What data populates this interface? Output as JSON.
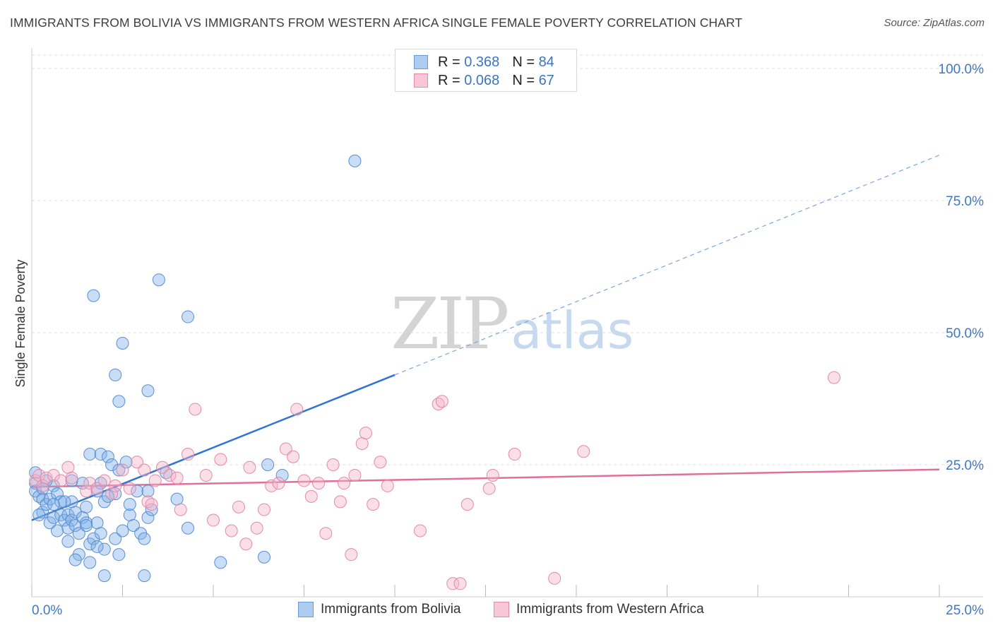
{
  "title": "IMMIGRANTS FROM BOLIVIA VS IMMIGRANTS FROM WESTERN AFRICA SINGLE FEMALE POVERTY CORRELATION CHART",
  "source": "Source: ZipAtlas.com",
  "watermark": {
    "zip": "ZIP",
    "atlas": "atlas"
  },
  "legend_top": {
    "rows": [
      {
        "r_label": "R =",
        "r_value": "0.368",
        "n_label": "N =",
        "n_value": "84",
        "color": "#aecbf0",
        "border": "#6b9bd6"
      },
      {
        "r_label": "R =",
        "r_value": "0.068",
        "n_label": "N =",
        "n_value": "67",
        "color": "#f8c6d6",
        "border": "#e48aa8"
      }
    ]
  },
  "chart_data": {
    "type": "scatter",
    "title": "IMMIGRANTS FROM BOLIVIA VS IMMIGRANTS FROM WESTERN AFRICA SINGLE FEMALE POVERTY CORRELATION CHART",
    "xlabel": "",
    "ylabel": "Single Female Poverty",
    "xlim": [
      0,
      25
    ],
    "ylim": [
      0,
      100
    ],
    "x_tick_labels": [
      "0.0%",
      "25.0%"
    ],
    "y_tick_labels": [
      "25.0%",
      "50.0%",
      "75.0%",
      "100.0%"
    ],
    "y_ticks": [
      25,
      50,
      75,
      100
    ],
    "grid": true,
    "series": [
      {
        "name": "Immigrants from Bolivia",
        "color": "#7fb0ea",
        "stroke": "#5a8fd0",
        "trend": {
          "x0": 0,
          "y0": 14.5,
          "x1": 10,
          "y1": 42,
          "dash_to_x": 25,
          "dash_to_y": 83.6,
          "color": "#2f74cf"
        },
        "points": [
          [
            0.1,
            23.5
          ],
          [
            0.1,
            21.5
          ],
          [
            0.1,
            20
          ],
          [
            0.2,
            19
          ],
          [
            0.3,
            18.5
          ],
          [
            0.3,
            16
          ],
          [
            0.4,
            17.5
          ],
          [
            0.5,
            18.5
          ],
          [
            0.5,
            14
          ],
          [
            0.6,
            15
          ],
          [
            0.6,
            21
          ],
          [
            0.7,
            19.5
          ],
          [
            0.8,
            18
          ],
          [
            0.8,
            15.5
          ],
          [
            0.9,
            14.5
          ],
          [
            1.0,
            15.5
          ],
          [
            1.0,
            13
          ],
          [
            1.1,
            18
          ],
          [
            1.1,
            14.5
          ],
          [
            1.2,
            16
          ],
          [
            1.2,
            13.5
          ],
          [
            1.3,
            12
          ],
          [
            1.3,
            8
          ],
          [
            1.4,
            21.5
          ],
          [
            1.4,
            15
          ],
          [
            1.5,
            14
          ],
          [
            1.5,
            17
          ],
          [
            1.6,
            27
          ],
          [
            1.6,
            6.5
          ],
          [
            1.6,
            10
          ],
          [
            1.7,
            11
          ],
          [
            1.8,
            20
          ],
          [
            1.8,
            14
          ],
          [
            1.9,
            27
          ],
          [
            1.9,
            12
          ],
          [
            1.9,
            21.5
          ],
          [
            2.0,
            9
          ],
          [
            2.0,
            18
          ],
          [
            2.1,
            26.5
          ],
          [
            2.2,
            25
          ],
          [
            2.3,
            19.5
          ],
          [
            2.3,
            11
          ],
          [
            2.4,
            24
          ],
          [
            2.4,
            8
          ],
          [
            2.5,
            12.5
          ],
          [
            2.6,
            25.5
          ],
          [
            2.7,
            15.5
          ],
          [
            2.7,
            17.5
          ],
          [
            2.8,
            13.5
          ],
          [
            2.9,
            20
          ],
          [
            3.0,
            12
          ],
          [
            3.1,
            11
          ],
          [
            3.1,
            4
          ],
          [
            3.2,
            20
          ],
          [
            3.2,
            15
          ],
          [
            3.3,
            16.5
          ],
          [
            1.7,
            57
          ],
          [
            2.3,
            42
          ],
          [
            2.4,
            37
          ],
          [
            2.5,
            48
          ],
          [
            3.5,
            60
          ],
          [
            4.3,
            53
          ],
          [
            3.2,
            39
          ],
          [
            3.7,
            23.5
          ],
          [
            4.0,
            18.5
          ],
          [
            4.3,
            13
          ],
          [
            5.2,
            6.5
          ],
          [
            6.4,
            7.5
          ],
          [
            6.5,
            25
          ],
          [
            6.9,
            23
          ],
          [
            8.9,
            82.5
          ],
          [
            0.2,
            15.5
          ],
          [
            0.4,
            22
          ],
          [
            0.6,
            17.5
          ],
          [
            0.9,
            18
          ],
          [
            1.1,
            22
          ],
          [
            1.5,
            13.5
          ],
          [
            2.0,
            4
          ],
          [
            2.1,
            19
          ],
          [
            1.2,
            7
          ],
          [
            0.3,
            20.5
          ],
          [
            0.7,
            12.5
          ],
          [
            1.0,
            10.5
          ],
          [
            1.8,
            9.5
          ]
        ]
      },
      {
        "name": "Immigrants from Western Africa",
        "color": "#f6b3c8",
        "stroke": "#e28aa8",
        "trend": {
          "x0": 0,
          "y0": 20.8,
          "x1": 25,
          "y1": 24.1,
          "color": "#e0709a"
        },
        "points": [
          [
            0.1,
            22
          ],
          [
            0.2,
            23
          ],
          [
            0.3,
            21
          ],
          [
            0.4,
            22.5
          ],
          [
            0.6,
            23
          ],
          [
            0.8,
            22
          ],
          [
            1.0,
            24.5
          ],
          [
            1.1,
            22.5
          ],
          [
            1.5,
            20
          ],
          [
            1.6,
            21.5
          ],
          [
            1.8,
            20.5
          ],
          [
            2.0,
            22
          ],
          [
            2.2,
            19.5
          ],
          [
            2.5,
            24
          ],
          [
            2.7,
            20.5
          ],
          [
            2.9,
            25.5
          ],
          [
            3.1,
            24
          ],
          [
            3.2,
            18
          ],
          [
            3.3,
            17.5
          ],
          [
            3.4,
            22
          ],
          [
            3.6,
            24.5
          ],
          [
            3.8,
            23
          ],
          [
            4.0,
            22.5
          ],
          [
            4.1,
            16.5
          ],
          [
            4.3,
            27
          ],
          [
            4.5,
            35.5
          ],
          [
            4.8,
            23
          ],
          [
            5.0,
            14.5
          ],
          [
            5.2,
            26
          ],
          [
            5.5,
            12.5
          ],
          [
            5.7,
            17
          ],
          [
            5.9,
            10
          ],
          [
            6.0,
            24.5
          ],
          [
            6.2,
            13
          ],
          [
            6.4,
            16.5
          ],
          [
            6.6,
            21
          ],
          [
            6.8,
            21.5
          ],
          [
            7.0,
            28
          ],
          [
            7.2,
            26.5
          ],
          [
            7.3,
            35.5
          ],
          [
            7.5,
            22
          ],
          [
            7.7,
            19
          ],
          [
            7.9,
            21.5
          ],
          [
            8.1,
            12
          ],
          [
            8.3,
            25
          ],
          [
            8.5,
            18
          ],
          [
            8.6,
            21.5
          ],
          [
            8.8,
            8
          ],
          [
            8.9,
            23
          ],
          [
            9.1,
            29
          ],
          [
            9.2,
            31
          ],
          [
            9.4,
            17.5
          ],
          [
            9.6,
            25.5
          ],
          [
            9.8,
            21
          ],
          [
            10.7,
            12.5
          ],
          [
            11.2,
            36.5
          ],
          [
            11.3,
            37
          ],
          [
            11.6,
            2.5
          ],
          [
            11.8,
            2.5
          ],
          [
            12.0,
            17.5
          ],
          [
            12.6,
            20.5
          ],
          [
            12.7,
            23
          ],
          [
            13.3,
            27
          ],
          [
            14.4,
            3.5
          ],
          [
            15.2,
            27.5
          ],
          [
            22.1,
            41.5
          ],
          [
            2.3,
            21
          ]
        ]
      }
    ]
  }
}
